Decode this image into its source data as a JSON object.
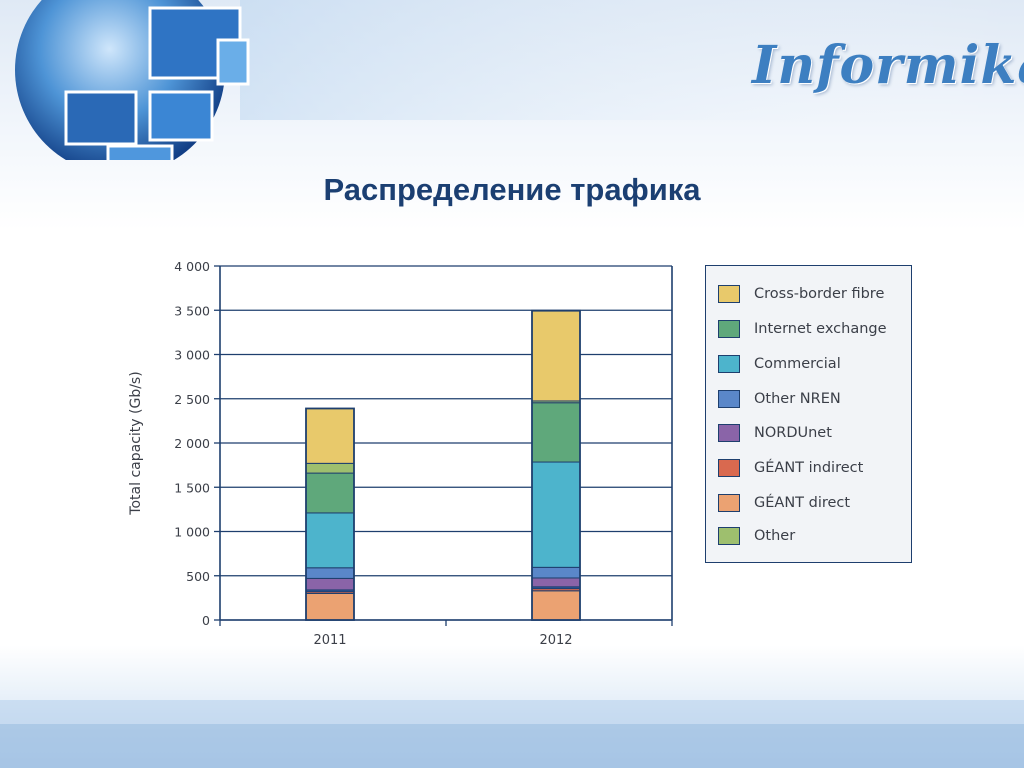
{
  "slide": {
    "title": "Распределение трафика",
    "logo_text": "Informika"
  },
  "chart_data": {
    "type": "bar",
    "stacked": true,
    "categories": [
      "2011",
      "2012"
    ],
    "ylabel": "Total capacity (Gb/s)",
    "ylim": [
      0,
      4000
    ],
    "yticks": [
      0,
      500,
      1000,
      1500,
      2000,
      2500,
      3000,
      3500,
      4000
    ],
    "ytick_labels": [
      "0",
      "500",
      "1 000",
      "1 500",
      "2 000",
      "2 500",
      "3 000",
      "3 500",
      "4 000"
    ],
    "grid": true,
    "legend_position": "right",
    "series": [
      {
        "name": "GÉANT direct",
        "color": "#eba272",
        "values": [
          300,
          330
        ]
      },
      {
        "name": "GÉANT indirect",
        "color": "#d9694f",
        "values": [
          20,
          25
        ]
      },
      {
        "name": "Other",
        "color": "#2f5aa2",
        "values": [
          20,
          20
        ]
      },
      {
        "name": "NORDUnet",
        "color": "#8a64a8",
        "values": [
          130,
          100
        ]
      },
      {
        "name": "Other NREN",
        "color": "#5a87c9",
        "values": [
          120,
          120
        ]
      },
      {
        "name": "Commercial",
        "color": "#4db4cc",
        "values": [
          620,
          1190
        ]
      },
      {
        "name": "Internet exchange",
        "color": "#5fa87b",
        "values": [
          450,
          670
        ]
      },
      {
        "name": "Other",
        "color": "#9ebf6e",
        "values": [
          110,
          20
        ]
      },
      {
        "name": "Cross-border fibre",
        "color": "#e8c96b",
        "values": [
          620,
          1020
        ]
      }
    ],
    "legend": [
      {
        "label": "Cross-border fibre",
        "color": "#e8c96b"
      },
      {
        "label": "Internet exchange",
        "color": "#5fa87b"
      },
      {
        "label": "Commercial",
        "color": "#4db4cc"
      },
      {
        "label": "Other NREN",
        "color": "#5a87c9"
      },
      {
        "label": "NORDUnet",
        "color": "#8a64a8"
      },
      {
        "label": "GÉANT indirect",
        "color": "#d9694f"
      },
      {
        "label": "GÉANT direct",
        "color": "#eba272"
      },
      {
        "label": "Other",
        "color": "#9ebf6e"
      }
    ]
  }
}
